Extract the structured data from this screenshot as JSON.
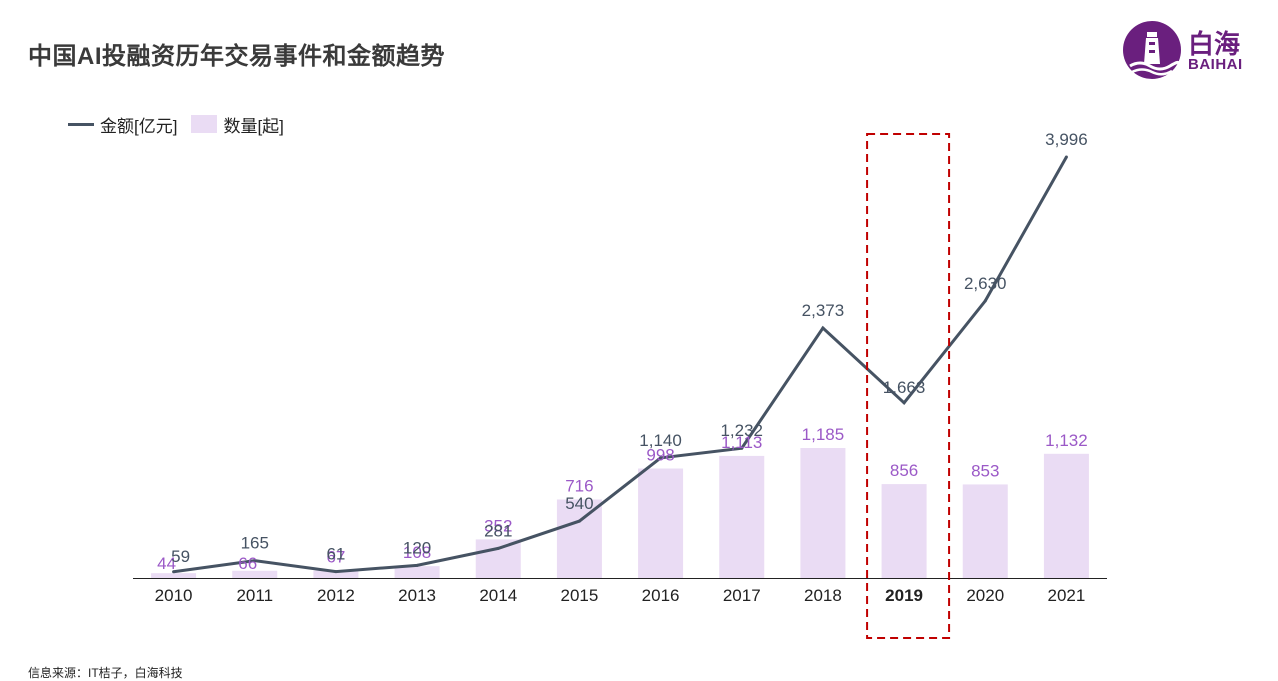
{
  "title": "中国AI投融资历年交易事件和金额趋势",
  "logo": {
    "cn": "白海",
    "en": "BAIHAI"
  },
  "source": "信息来源：IT桔子，白海科技",
  "colors": {
    "line": "#465363",
    "bar": "#eadcf4",
    "bar_label": "#9b59c7",
    "highlight": "#c00000",
    "brand": "#6a1f7e"
  },
  "chart_data": {
    "type": "bar",
    "categories": [
      "2010",
      "2011",
      "2012",
      "2013",
      "2014",
      "2015",
      "2016",
      "2017",
      "2018",
      "2019",
      "2020",
      "2021"
    ],
    "series": [
      {
        "name": "数量[起]",
        "type": "bar",
        "values": [
          44,
          66,
          67,
          108,
          352,
          716,
          998,
          1113,
          1185,
          856,
          853,
          1132
        ]
      },
      {
        "name": "金额[亿元]",
        "type": "line",
        "values": [
          59,
          165,
          61,
          120,
          281,
          540,
          1140,
          1232,
          2373,
          1663,
          2630,
          3996
        ]
      }
    ],
    "value_labels_bar": [
      "44",
      "66",
      "67",
      "108",
      "352",
      "716",
      "998",
      "1,113",
      "1,185",
      "856",
      "853",
      "1,132"
    ],
    "value_labels_line": [
      "59",
      "165",
      "61",
      "120",
      "281",
      "540",
      "1,140",
      "1,232",
      "2,373",
      "1,663",
      "2,630",
      "3,996"
    ],
    "highlight_category": "2019",
    "legend": "top-left",
    "grid": false
  }
}
